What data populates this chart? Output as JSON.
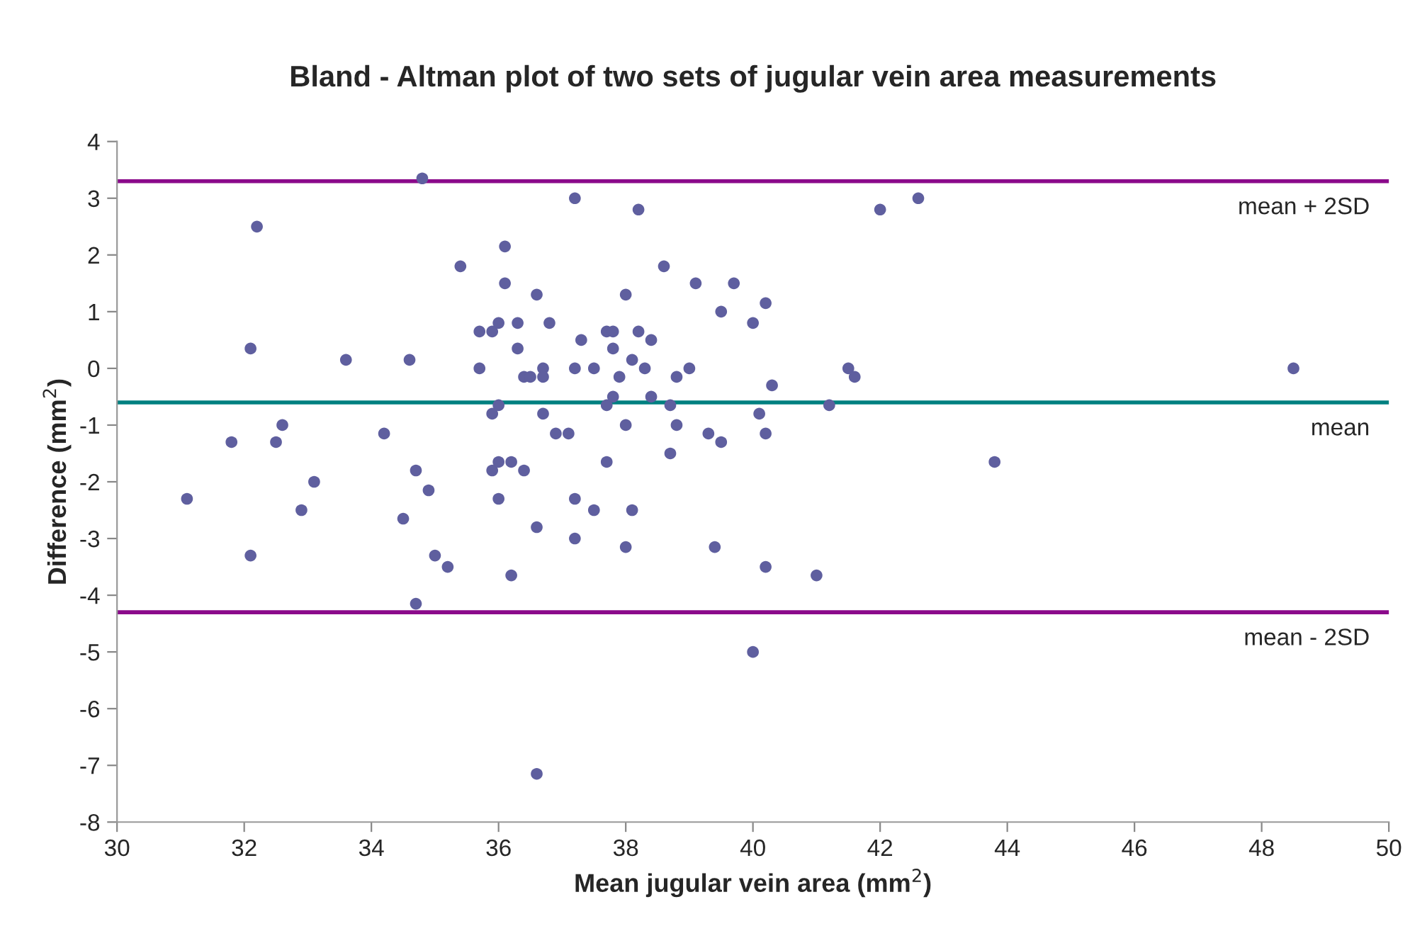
{
  "chart_data": {
    "type": "scatter",
    "title": "Bland - Altman plot of two sets of jugular vein area measurements",
    "xlabel": "Mean jugular vein area (mm$^{2}$)",
    "ylabel": "Difference (mm$^{2}$)",
    "x": [
      31.1,
      31.8,
      32.1,
      32.1,
      32.2,
      32.5,
      32.6,
      32.9,
      33.1,
      33.6,
      34.2,
      34.5,
      34.6,
      34.7,
      34.7,
      34.8,
      34.9,
      35.0,
      35.2,
      35.4,
      35.7,
      35.7,
      35.9,
      35.9,
      35.9,
      36.0,
      36.0,
      36.0,
      36.0,
      36.1,
      36.1,
      36.2,
      36.2,
      36.3,
      36.3,
      36.4,
      36.4,
      36.5,
      36.6,
      36.6,
      36.6,
      36.7,
      36.7,
      36.7,
      36.8,
      36.9,
      37.1,
      37.2,
      37.2,
      37.2,
      37.2,
      37.3,
      37.5,
      37.5,
      37.7,
      37.7,
      37.7,
      37.8,
      37.8,
      37.8,
      37.9,
      38.0,
      38.0,
      38.0,
      38.1,
      38.1,
      38.2,
      38.2,
      38.3,
      38.4,
      38.4,
      38.6,
      38.7,
      38.7,
      38.8,
      38.8,
      39.0,
      39.1,
      39.3,
      39.4,
      39.5,
      39.5,
      39.7,
      40.0,
      40.0,
      40.1,
      40.2,
      40.2,
      40.2,
      40.3,
      41.0,
      41.2,
      41.5,
      41.6,
      42.0,
      42.6,
      43.8,
      48.5
    ],
    "values": [
      -2.3,
      -1.3,
      0.35,
      -3.3,
      2.5,
      -1.3,
      -1.0,
      -2.5,
      -2.0,
      0.15,
      -1.15,
      -2.65,
      0.15,
      -1.8,
      -4.15,
      3.35,
      -2.15,
      -3.3,
      -3.5,
      1.8,
      0.65,
      0.0,
      0.65,
      -0.8,
      -1.8,
      0.8,
      -0.65,
      -1.65,
      -2.3,
      2.15,
      1.5,
      -1.65,
      -3.65,
      0.8,
      0.35,
      -0.15,
      -1.8,
      -0.15,
      -2.8,
      -7.15,
      1.3,
      0.0,
      -0.15,
      -0.8,
      0.8,
      -1.15,
      -1.15,
      3.0,
      0.0,
      -2.3,
      -3.0,
      0.5,
      -2.5,
      0.0,
      0.65,
      -0.65,
      -1.65,
      -0.5,
      0.65,
      0.35,
      -0.15,
      1.3,
      -1.0,
      -3.15,
      -2.5,
      0.15,
      2.8,
      0.65,
      0.0,
      0.5,
      -0.5,
      1.8,
      -0.65,
      -1.5,
      -0.15,
      -1.0,
      0.0,
      1.5,
      -1.15,
      -3.15,
      1.0,
      -1.3,
      1.5,
      0.8,
      -5.0,
      -0.8,
      1.15,
      -1.15,
      -3.5,
      -0.3,
      -3.65,
      -0.65,
      0.0,
      -0.15,
      2.8,
      3.0,
      -1.65,
      0.0
    ],
    "color": "#5f5f9f",
    "marker": "circle",
    "xlim": [
      30,
      50
    ],
    "xticks": [
      30,
      32,
      34,
      36,
      38,
      40,
      42,
      44,
      46,
      48,
      50
    ],
    "ylim": [
      -8,
      4
    ],
    "yticks": [
      -8,
      -7,
      -6,
      -5,
      -4,
      -3,
      -2,
      -1,
      0,
      1,
      2,
      3,
      4
    ],
    "grid": false,
    "legend": false,
    "ref_lines": [
      {
        "axis": "y",
        "value": 3.3,
        "label": "mean + 2SD",
        "color": "#8b0a8b"
      },
      {
        "axis": "y",
        "value": -0.6,
        "label": "mean",
        "color": "#008080"
      },
      {
        "axis": "y",
        "value": -4.3,
        "label": "mean - 2SD",
        "color": "#8b0a8b"
      }
    ]
  }
}
